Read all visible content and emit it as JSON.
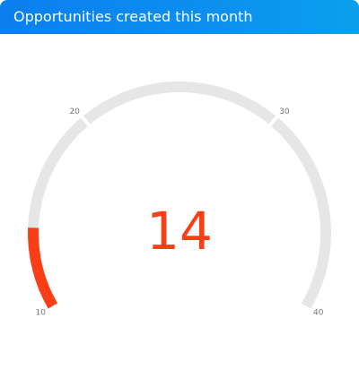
{
  "widget": {
    "title": "Opportunities created this month"
  },
  "gauge": {
    "value": 14,
    "value_label": "14",
    "min": 10,
    "max": 40,
    "ticks": [
      {
        "value": 10,
        "label": "10"
      },
      {
        "value": 20,
        "label": "20"
      },
      {
        "value": 30,
        "label": "30"
      },
      {
        "value": 40,
        "label": "40"
      }
    ],
    "colors": {
      "track": "#e6e6e6",
      "fill": "#fa3f17",
      "value_text": "#fa3f17",
      "header_start": "#0c7ef0",
      "header_end": "#0aa0ec"
    }
  }
}
